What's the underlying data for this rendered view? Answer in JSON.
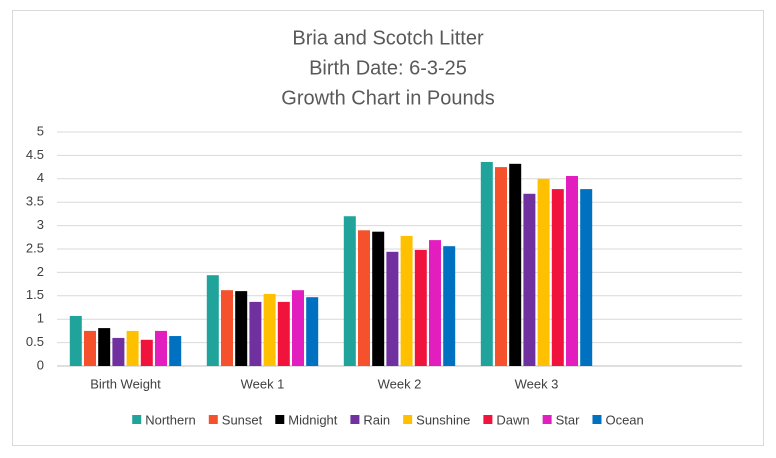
{
  "chart_data": {
    "type": "bar",
    "title": "Bria and Scotch Litter",
    "subtitle": [
      "Birth Date: 6-3-25",
      "Growth Chart in Pounds"
    ],
    "categories": [
      "Birth Weight",
      "Week 1",
      "Week 2",
      "Week 3",
      null
    ],
    "series": [
      {
        "name": "Northern",
        "color": "#1fa39b",
        "values": [
          1.07,
          1.94,
          3.2,
          4.36,
          null
        ]
      },
      {
        "name": "Sunset",
        "color": "#f4512c",
        "values": [
          0.75,
          1.62,
          2.9,
          4.25,
          null
        ]
      },
      {
        "name": "Midnight",
        "color": "#000000",
        "values": [
          0.81,
          1.6,
          2.87,
          4.32,
          null
        ]
      },
      {
        "name": "Rain",
        "color": "#7030a0",
        "values": [
          0.6,
          1.37,
          2.44,
          3.68,
          null
        ]
      },
      {
        "name": "Sunshine",
        "color": "#ffc000",
        "values": [
          0.75,
          1.54,
          2.78,
          4.0,
          null
        ]
      },
      {
        "name": "Dawn",
        "color": "#f0143c",
        "values": [
          0.56,
          1.37,
          2.48,
          3.78,
          null
        ]
      },
      {
        "name": "Star",
        "color": "#e31ebf",
        "values": [
          0.75,
          1.62,
          2.69,
          4.06,
          null
        ]
      },
      {
        "name": "Ocean",
        "color": "#0070c0",
        "values": [
          0.64,
          1.47,
          2.56,
          3.78,
          null
        ]
      }
    ],
    "ylim": [
      0,
      5
    ],
    "yticks": [
      0,
      0.5,
      1,
      1.5,
      2,
      2.5,
      3,
      3.5,
      4,
      4.5,
      5
    ],
    "grid": true,
    "legend": "bottom"
  }
}
